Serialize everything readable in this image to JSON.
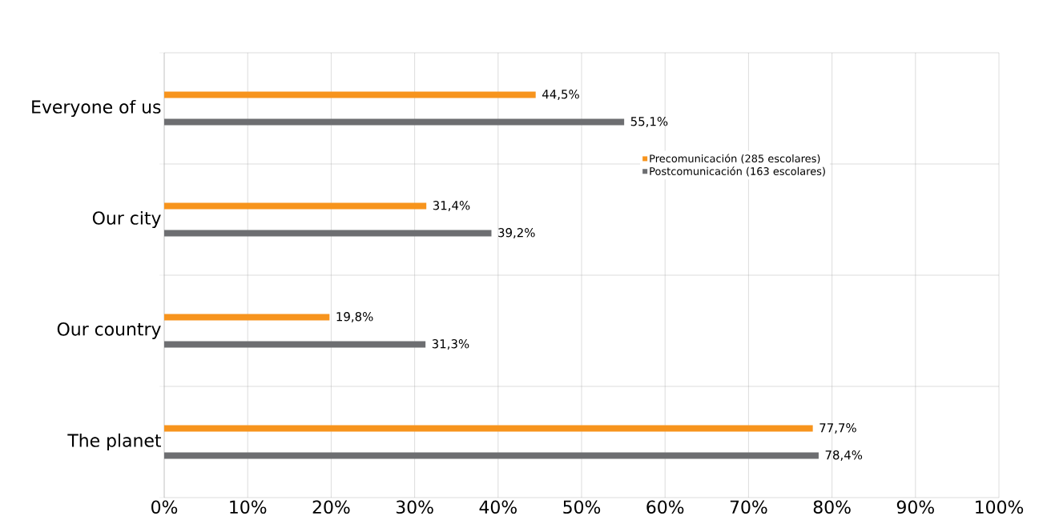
{
  "chart_data": {
    "type": "bar",
    "orientation": "horizontal",
    "categories": [
      "Everyone of us",
      "Our city",
      "Our country",
      "The planet"
    ],
    "series": [
      {
        "name": "Precomunicación (285 escolares)",
        "color": "#f7941d",
        "values": [
          44.5,
          31.4,
          19.8,
          77.7
        ],
        "value_labels": [
          "44,5%",
          "31,4%",
          "19,8%",
          "77,7%"
        ]
      },
      {
        "name": "Postcomunicación (163 escolares)",
        "color": "#6d6e71",
        "values": [
          55.1,
          39.2,
          31.3,
          78.4
        ],
        "value_labels": [
          "55,1%",
          "39,2%",
          "31,3%",
          "78,4%"
        ]
      }
    ],
    "xlim": [
      0,
      100
    ],
    "xticks": [
      {
        "value": 0,
        "label": "0%"
      },
      {
        "value": 10,
        "label": "10%"
      },
      {
        "value": 20,
        "label": "20%"
      },
      {
        "value": 30,
        "label": "30%"
      },
      {
        "value": 40,
        "label": "40%"
      },
      {
        "value": 50,
        "label": "50%"
      },
      {
        "value": 60,
        "label": "60%"
      },
      {
        "value": 70,
        "label": "70%"
      },
      {
        "value": 80,
        "label": "80%"
      },
      {
        "value": 90,
        "label": "90%"
      },
      {
        "value": 100,
        "label": "100%"
      }
    ],
    "grid": true,
    "legend": "right"
  }
}
